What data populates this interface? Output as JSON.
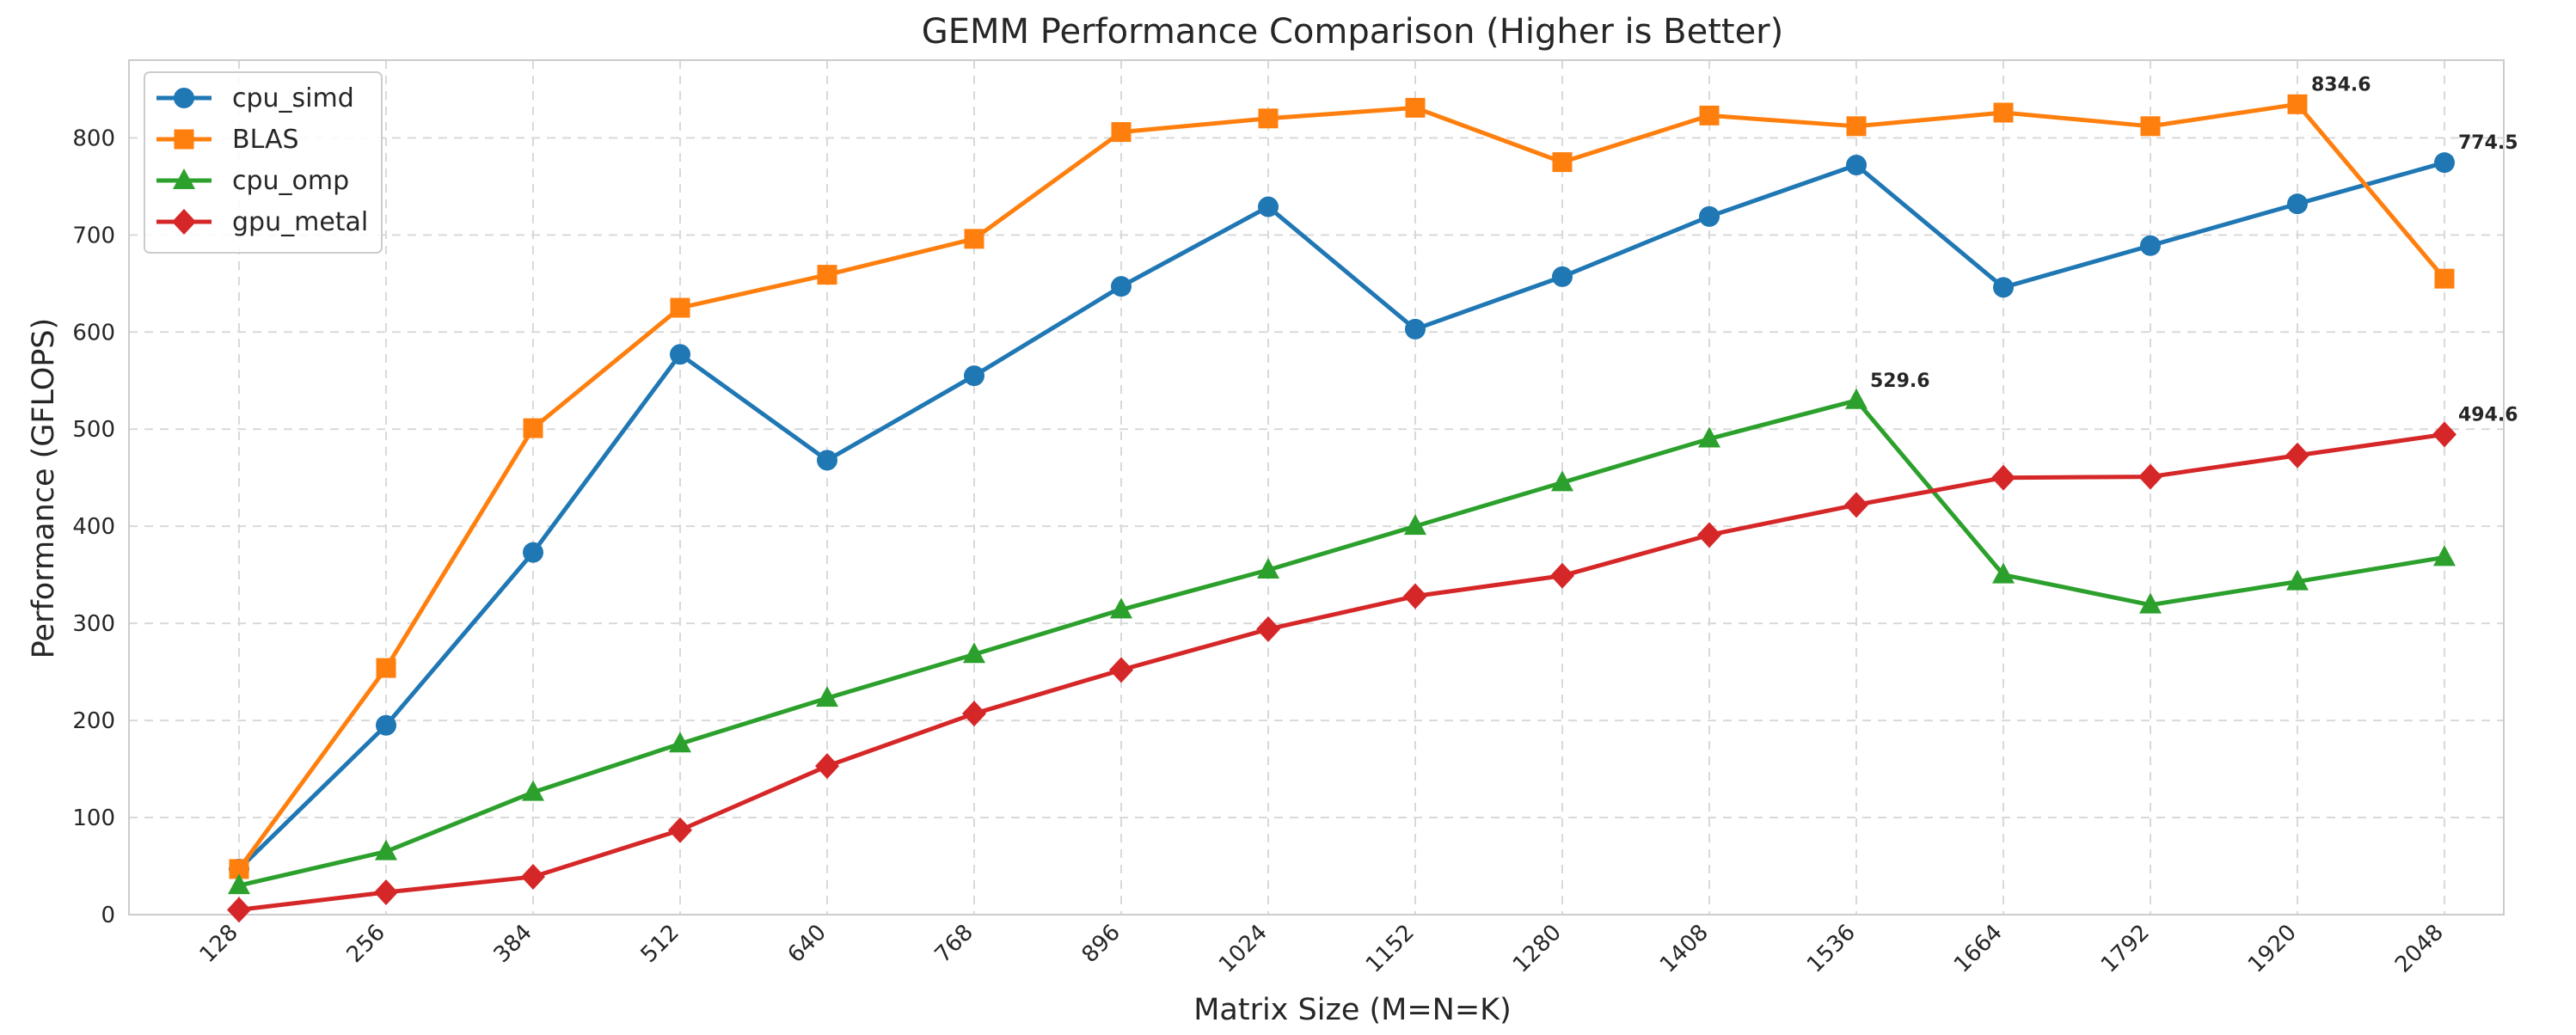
{
  "chart_data": {
    "type": "line",
    "title": "GEMM Performance Comparison (Higher is Better)",
    "xlabel": "Matrix Size (M=N=K)",
    "ylabel": "Performance (GFLOPS)",
    "categories": [
      "128",
      "256",
      "384",
      "512",
      "640",
      "768",
      "896",
      "1024",
      "1152",
      "1280",
      "1408",
      "1536",
      "1664",
      "1792",
      "1920",
      "2048"
    ],
    "ylim": [
      0,
      880
    ],
    "yticks": [
      0,
      100,
      200,
      300,
      400,
      500,
      600,
      700,
      800
    ],
    "grid": true,
    "legend_position": "top-left",
    "series": [
      {
        "name": "cpu_simd",
        "color": "#1f77b4",
        "marker": "circle",
        "values": [
          47,
          195,
          373,
          577,
          468,
          555,
          647,
          729,
          603,
          657,
          719,
          772,
          646,
          689,
          732,
          774.5
        ]
      },
      {
        "name": "BLAS",
        "color": "#ff7f0e",
        "marker": "square",
        "values": [
          47,
          254,
          501,
          625,
          659,
          696,
          806,
          820,
          831,
          775,
          823,
          812,
          826,
          812,
          834.6,
          655
        ]
      },
      {
        "name": "cpu_omp",
        "color": "#2ca02c",
        "marker": "triangle",
        "values": [
          30,
          65,
          126,
          176,
          223,
          268,
          314,
          355,
          400,
          445,
          490,
          529.6,
          350,
          319,
          343,
          368
        ]
      },
      {
        "name": "gpu_metal",
        "color": "#d62728",
        "marker": "diamond",
        "values": [
          5,
          23,
          39,
          87,
          153,
          207,
          252,
          294,
          328,
          349,
          391,
          422,
          450,
          451,
          473,
          494.6
        ]
      }
    ],
    "annotations": [
      {
        "text": "834.6",
        "series": "BLAS",
        "category": "1920"
      },
      {
        "text": "774.5",
        "series": "cpu_simd",
        "category": "2048"
      },
      {
        "text": "529.6",
        "series": "cpu_omp",
        "category": "1536"
      },
      {
        "text": "494.6",
        "series": "gpu_metal",
        "category": "2048"
      }
    ]
  }
}
